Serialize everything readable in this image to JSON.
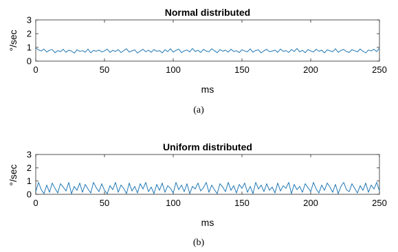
{
  "chart_data": [
    {
      "type": "line",
      "title": "Normal distributed",
      "xlabel": "ms",
      "ylabel": "°/sec",
      "caption": "(a)",
      "xlim": [
        0,
        250
      ],
      "ylim": [
        0,
        3
      ],
      "xticks": [
        "0",
        "50",
        "100",
        "150",
        "200",
        "250"
      ],
      "yticks": [
        "0",
        "1",
        "2",
        "3"
      ],
      "line_color": "#1f77b4",
      "series": [
        {
          "x": [
            0,
            2,
            4,
            6,
            8,
            10,
            12,
            14,
            16,
            18,
            20,
            22,
            24,
            26,
            28,
            30,
            32,
            34,
            36,
            38,
            40,
            42,
            44,
            46,
            48,
            50,
            52,
            54,
            56,
            58,
            60,
            62,
            64,
            66,
            68,
            70,
            72,
            74,
            76,
            78,
            80,
            82,
            84,
            86,
            88,
            90,
            92,
            94,
            96,
            98,
            100,
            102,
            104,
            106,
            108,
            110,
            112,
            114,
            116,
            118,
            120,
            122,
            124,
            126,
            128,
            130,
            132,
            134,
            136,
            138,
            140,
            142,
            144,
            146,
            148,
            150,
            152,
            154,
            156,
            158,
            160,
            162,
            164,
            166,
            168,
            170,
            172,
            174,
            176,
            178,
            180,
            182,
            184,
            186,
            188,
            190,
            192,
            194,
            196,
            198,
            200,
            202,
            204,
            206,
            208,
            210,
            212,
            214,
            216,
            218,
            220,
            222,
            224,
            226,
            228,
            230,
            232,
            234,
            236,
            238,
            240,
            242,
            244,
            246,
            248,
            250
          ],
          "values": [
            0.95,
            0.82,
            0.74,
            0.88,
            0.66,
            0.79,
            0.84,
            0.61,
            0.77,
            0.69,
            0.86,
            0.64,
            0.8,
            0.73,
            0.58,
            0.83,
            0.71,
            0.76,
            0.65,
            0.88,
            0.6,
            0.78,
            0.72,
            0.81,
            0.67,
            0.74,
            0.87,
            0.63,
            0.79,
            0.7,
            0.84,
            0.62,
            0.77,
            0.9,
            0.66,
            0.75,
            0.82,
            0.59,
            0.73,
            0.86,
            0.68,
            0.8,
            0.64,
            0.85,
            0.71,
            0.77,
            0.6,
            0.83,
            0.69,
            0.9,
            0.66,
            0.78,
            0.88,
            0.62,
            0.75,
            0.81,
            0.67,
            0.92,
            0.7,
            0.79,
            0.63,
            0.86,
            0.73,
            0.68,
            0.9,
            0.76,
            0.61,
            0.84,
            0.72,
            0.8,
            0.66,
            0.87,
            0.7,
            0.76,
            0.62,
            0.83,
            0.74,
            0.68,
            0.89,
            0.65,
            0.78,
            0.82,
            0.6,
            0.75,
            0.86,
            0.69,
            0.73,
            0.8,
            0.64,
            0.88,
            0.71,
            0.77,
            0.63,
            0.85,
            0.7,
            0.92,
            0.67,
            0.79,
            0.61,
            0.84,
            0.74,
            0.66,
            0.87,
            0.72,
            0.8,
            0.6,
            0.82,
            0.75,
            0.68,
            0.9,
            0.64,
            0.78,
            0.85,
            0.7,
            0.63,
            0.83,
            0.76,
            0.67,
            0.88,
            0.72,
            0.6,
            0.81,
            0.74,
            0.86,
            0.69,
            0.95
          ]
        }
      ]
    },
    {
      "type": "line",
      "title": "Uniform distributed",
      "xlabel": "ms",
      "ylabel": "°/sec",
      "caption": "(b)",
      "xlim": [
        0,
        250
      ],
      "ylim": [
        0,
        3
      ],
      "xticks": [
        "0",
        "50",
        "100",
        "150",
        "200",
        "250"
      ],
      "yticks": [
        "0",
        "1",
        "2",
        "3"
      ],
      "line_color": "#1f77b4",
      "series": [
        {
          "x": [
            0,
            2,
            4,
            6,
            8,
            10,
            12,
            14,
            16,
            18,
            20,
            22,
            24,
            26,
            28,
            30,
            32,
            34,
            36,
            38,
            40,
            42,
            44,
            46,
            48,
            50,
            52,
            54,
            56,
            58,
            60,
            62,
            64,
            66,
            68,
            70,
            72,
            74,
            76,
            78,
            80,
            82,
            84,
            86,
            88,
            90,
            92,
            94,
            96,
            98,
            100,
            102,
            104,
            106,
            108,
            110,
            112,
            114,
            116,
            118,
            120,
            122,
            124,
            126,
            128,
            130,
            132,
            134,
            136,
            138,
            140,
            142,
            144,
            146,
            148,
            150,
            152,
            154,
            156,
            158,
            160,
            162,
            164,
            166,
            168,
            170,
            172,
            174,
            176,
            178,
            180,
            182,
            184,
            186,
            188,
            190,
            192,
            194,
            196,
            198,
            200,
            202,
            204,
            206,
            208,
            210,
            212,
            214,
            216,
            218,
            220,
            222,
            224,
            226,
            228,
            230,
            232,
            234,
            236,
            238,
            240,
            242,
            244,
            246,
            248,
            250
          ],
          "values": [
            0.2,
            0.9,
            0.35,
            0.05,
            0.7,
            0.15,
            0.85,
            0.45,
            0.1,
            0.8,
            0.55,
            0.25,
            0.9,
            0.05,
            0.6,
            0.3,
            0.85,
            0.15,
            0.75,
            0.4,
            0.1,
            0.9,
            0.5,
            0.2,
            0.8,
            0.3,
            0.05,
            0.65,
            0.35,
            0.9,
            0.15,
            0.7,
            0.45,
            0.05,
            0.85,
            0.25,
            0.6,
            0.1,
            0.8,
            0.4,
            0.9,
            0.2,
            0.55,
            0.05,
            0.75,
            0.3,
            0.85,
            0.15,
            0.65,
            0.45,
            0.1,
            0.9,
            0.35,
            0.7,
            0.2,
            0.8,
            0.05,
            0.6,
            0.4,
            0.85,
            0.25,
            0.5,
            0.9,
            0.15,
            0.7,
            0.35,
            0.05,
            0.8,
            0.55,
            0.2,
            0.9,
            0.3,
            0.65,
            0.1,
            0.75,
            0.45,
            0.85,
            0.15,
            0.6,
            0.05,
            0.9,
            0.4,
            0.7,
            0.2,
            0.8,
            0.3,
            0.55,
            0.1,
            0.85,
            0.25,
            0.65,
            0.45,
            0.9,
            0.05,
            0.75,
            0.35,
            0.6,
            0.15,
            0.8,
            0.5,
            0.2,
            0.9,
            0.4,
            0.1,
            0.7,
            0.3,
            0.85,
            0.55,
            0.15,
            0.75,
            0.05,
            0.6,
            0.9,
            0.35,
            0.2,
            0.8,
            0.45,
            0.1,
            0.65,
            0.3,
            0.85,
            0.15,
            0.7,
            0.4,
            0.9,
            0.25
          ]
        }
      ]
    }
  ]
}
